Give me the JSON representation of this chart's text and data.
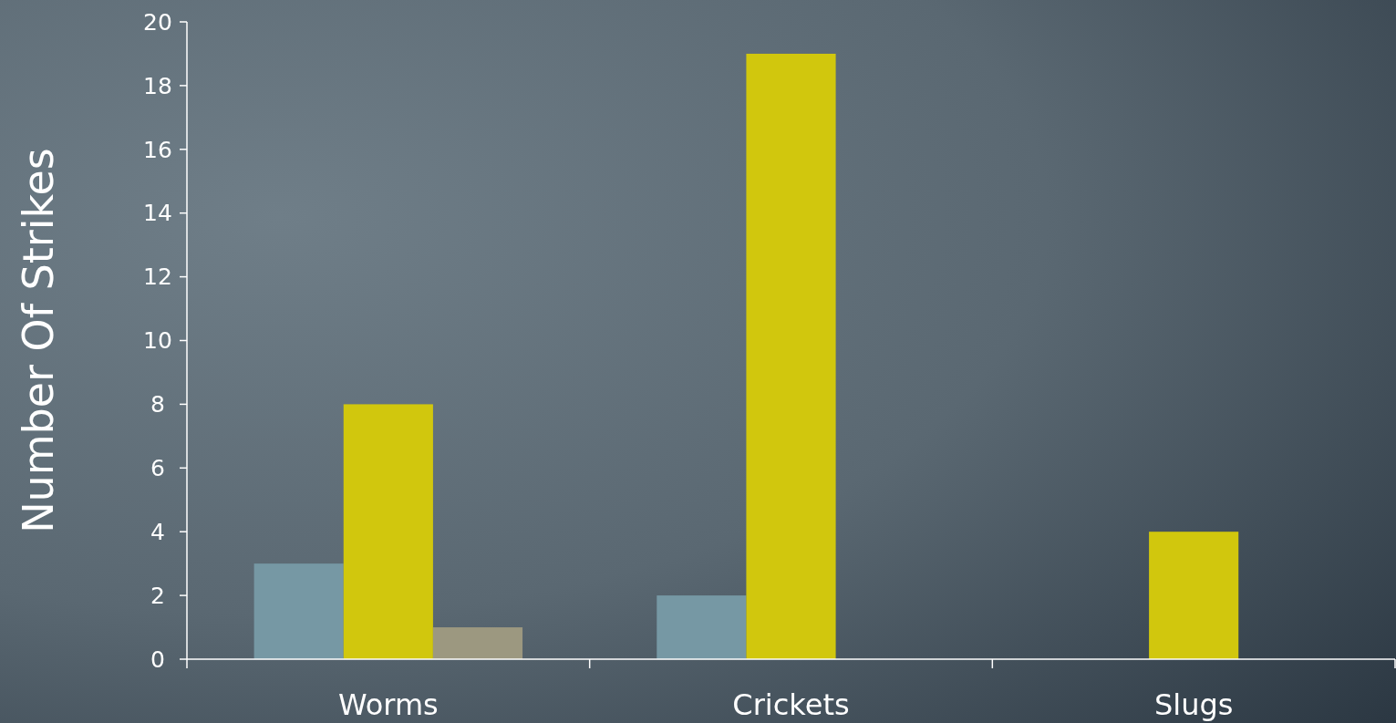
{
  "chart_data": {
    "type": "bar",
    "ylabel": "Number Of Strikes",
    "categories": [
      "Worms",
      "Crickets",
      "Slugs"
    ],
    "series": [
      {
        "color": "#7698a4",
        "values": [
          3,
          2,
          0
        ]
      },
      {
        "color": "#d1c70d",
        "values": [
          8,
          19,
          4
        ]
      },
      {
        "color": "#9c9880",
        "values": [
          1,
          0,
          0
        ]
      }
    ],
    "ylim": [
      0,
      20
    ],
    "yticks": [
      0,
      2,
      4,
      6,
      8,
      10,
      12,
      14,
      16,
      18,
      20
    ],
    "grid": false
  }
}
